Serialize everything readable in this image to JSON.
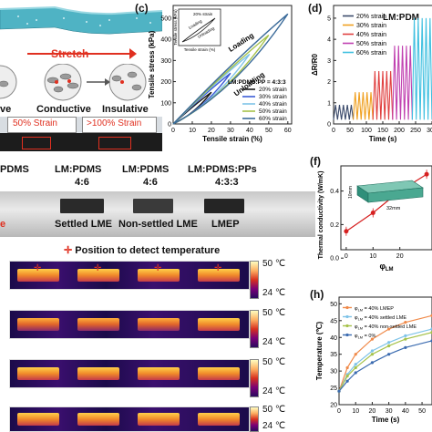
{
  "panel_a": {
    "stretch_label": "Stretch",
    "conductive_label": "Conductive",
    "insulative_label": "Insulative",
    "partial_left_label": "ve",
    "strain_50": "50% Strain",
    "strain_100": ">100% Strain"
  },
  "panel_c": {
    "letter": "(c)",
    "legend_title": "LM:PDMS:PP = 4:3:3",
    "legend": [
      "20% strain",
      "30% strain",
      "40% strain",
      "50% strain",
      "60% strain"
    ],
    "loading_label": "Loading",
    "unloading_label": "Unloading",
    "inset": {
      "legend": "20% strain",
      "loading_label": "Loading",
      "unloading_label": "Unloading",
      "xlabel": "Tensile strain (%)",
      "ylabel": "Tensile stress (kPa)"
    },
    "colors": [
      "#1a1a1a",
      "#3b5bd6",
      "#7ec3e8",
      "#a6c24a",
      "#3b6b9a"
    ]
  },
  "panel_d": {
    "letter": "(d)",
    "title_partial": "LM:PDM",
    "legend": [
      "20% strain",
      "30% strain",
      "40% strain",
      "50% strain",
      "60% strain"
    ],
    "colors": [
      "#3b4a6b",
      "#f0a020",
      "#e04040",
      "#c040b0",
      "#40c0e0"
    ]
  },
  "panel_e": {
    "partial_header": "PDMS",
    "headers": [
      {
        "l1": "LM:PDMS",
        "l2": "4:6"
      },
      {
        "l1": "LM:PDMS",
        "l2": "4:6"
      },
      {
        "l1": "LM:PDMS:PPs",
        "l2": "4:3:3"
      }
    ],
    "sublabels": [
      "Settled LME",
      "Non-settled LME",
      "LMEP"
    ],
    "partial_red": "e"
  },
  "panel_f": {
    "letter": "(f)",
    "inset_dims": [
      "10mm",
      "32mm"
    ],
    "ylabel": "Thermal conductivity (W/mK)",
    "xlabel_phi": "φ",
    "xlabel_sub": "LM"
  },
  "panel_g": {
    "marker_label": "Position to detect temperature",
    "scale_max": "50",
    "scale_min": "24",
    "unit": "℃"
  },
  "panel_h": {
    "letter": "(h)",
    "legend": [
      {
        "pre": "φ",
        "sub": "LM",
        "rest": " = 40% LMEP"
      },
      {
        "pre": "φ",
        "sub": "LM",
        "rest": " = 40% settled LME"
      },
      {
        "pre": "φ",
        "sub": "LM",
        "rest": " = 40% non-settled LME"
      },
      {
        "pre": "φ",
        "sub": "LM",
        "rest": " = 0%"
      }
    ],
    "colors": [
      "#f08a4a",
      "#7ec3e8",
      "#a6c24a",
      "#3b6bb0"
    ],
    "ylabel": "Temperature (℃)",
    "xlabel": "Time (s)"
  },
  "chart_data": [
    {
      "type": "line",
      "xlabel": "Tensile strain (%)",
      "ylabel": "Tensile stress (kPa)",
      "xticks": [
        0,
        10,
        20,
        30,
        40,
        50,
        60
      ],
      "yticks": [
        0,
        100,
        200,
        300,
        400,
        500
      ],
      "xlim": [
        0,
        62
      ],
      "ylim": [
        0,
        560
      ],
      "series": [
        {
          "name": "20% strain",
          "x": [
            0,
            20
          ],
          "y": [
            0,
            150
          ]
        },
        {
          "name": "30% strain",
          "x": [
            0,
            30
          ],
          "y": [
            0,
            240
          ]
        },
        {
          "name": "40% strain",
          "x": [
            0,
            40
          ],
          "y": [
            0,
            330
          ]
        },
        {
          "name": "50% strain",
          "x": [
            0,
            50
          ],
          "y": [
            0,
            420
          ]
        },
        {
          "name": "60% strain",
          "x": [
            0,
            60
          ],
          "y": [
            0,
            520
          ]
        }
      ]
    },
    {
      "type": "line",
      "xlabel": "Time (s)",
      "ylabel": "ΔR/R0",
      "xticks": [
        0,
        50,
        100,
        150,
        200,
        250,
        300
      ],
      "yticks": [
        0,
        1,
        2,
        3,
        4,
        5
      ],
      "xlim": [
        0,
        300
      ],
      "ylim": [
        0,
        5.6
      ],
      "series": [
        {
          "name": "20% strain",
          "peak": 0.9,
          "x_range": [
            0,
            60
          ]
        },
        {
          "name": "30% strain",
          "peak": 1.5,
          "x_range": [
            60,
            120
          ]
        },
        {
          "name": "40% strain",
          "peak": 2.5,
          "x_range": [
            120,
            180
          ]
        },
        {
          "name": "50% strain",
          "peak": 3.7,
          "x_range": [
            180,
            240
          ]
        },
        {
          "name": "60% strain",
          "peak": 5.0,
          "x_range": [
            240,
            300
          ]
        }
      ]
    },
    {
      "type": "line",
      "xlabel": "φLM",
      "ylabel": "Thermal conductivity (W/mK)",
      "xticks": [
        0,
        10,
        20
      ],
      "yticks": [
        0.0,
        0.2,
        0.4
      ],
      "xlim": [
        -2,
        32
      ],
      "ylim": [
        0.05,
        0.55
      ],
      "series": [
        {
          "x": [
            0,
            10,
            20,
            30
          ],
          "y": [
            0.16,
            0.27,
            0.4,
            0.5
          ]
        }
      ]
    },
    {
      "type": "line",
      "xlabel": "Time (s)",
      "ylabel": "Temperature (℃)",
      "xticks": [
        0,
        10,
        20,
        30,
        40,
        50
      ],
      "yticks": [
        20,
        25,
        30,
        35,
        40,
        45,
        50
      ],
      "xlim": [
        0,
        56
      ],
      "ylim": [
        20,
        52
      ],
      "series": [
        {
          "name": "40% LMEP",
          "x": [
            0,
            5,
            10,
            20,
            30,
            40,
            56
          ],
          "y": [
            24,
            31,
            35,
            39.5,
            42.5,
            44.5,
            46.5
          ]
        },
        {
          "name": "40% settled LME",
          "x": [
            0,
            5,
            10,
            20,
            30,
            40,
            56
          ],
          "y": [
            24,
            29,
            32,
            36,
            38.5,
            40.5,
            42.5
          ]
        },
        {
          "name": "40% non-settled LME",
          "x": [
            0,
            5,
            10,
            20,
            30,
            40,
            56
          ],
          "y": [
            24,
            28.5,
            31,
            35,
            37.5,
            39.5,
            41.5
          ]
        },
        {
          "name": "0%",
          "x": [
            0,
            5,
            10,
            20,
            30,
            40,
            56
          ],
          "y": [
            24,
            27,
            29.5,
            32.5,
            35,
            37,
            39
          ]
        }
      ]
    }
  ]
}
